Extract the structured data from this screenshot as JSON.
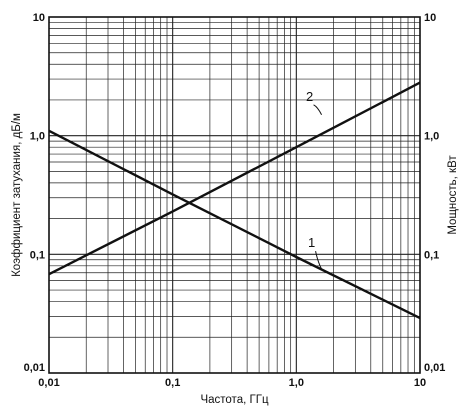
{
  "chart_data": {
    "type": "line",
    "xscale": "log",
    "yscale": "log",
    "xlim": [
      0.01,
      10
    ],
    "ylim": [
      0.01,
      10
    ],
    "y2lim": [
      0.01,
      10
    ],
    "grid": true,
    "xlabel": "Частота, ГГц",
    "ylabel": "Коэффициент затухания, дБ/м",
    "y2label": "Мощность, кВт",
    "x_ticks": [
      {
        "value": 0.01,
        "label": "0,01"
      },
      {
        "value": 0.1,
        "label": "0,1"
      },
      {
        "value": 1,
        "label": "1,0"
      },
      {
        "value": 10,
        "label": "10"
      }
    ],
    "y_ticks": [
      {
        "value": 0.01,
        "label": "0,01"
      },
      {
        "value": 0.1,
        "label": "0,1"
      },
      {
        "value": 1,
        "label": "1,0"
      },
      {
        "value": 10,
        "label": "10"
      }
    ],
    "y2_ticks": [
      {
        "value": 0.01,
        "label": "0,01"
      },
      {
        "value": 0.1,
        "label": "0,1"
      },
      {
        "value": 1,
        "label": "1,0"
      },
      {
        "value": 10,
        "label": "10"
      }
    ],
    "series": [
      {
        "name": "1",
        "axis": "left",
        "x": [
          0.01,
          0.1,
          1,
          10
        ],
        "y": [
          1.1,
          0.32,
          0.095,
          0.029
        ],
        "label_at": {
          "x": 1.6,
          "y": 0.075
        }
      },
      {
        "name": "2",
        "axis": "right",
        "x": [
          0.01,
          0.1,
          1,
          10
        ],
        "y": [
          0.068,
          0.23,
          0.8,
          2.8
        ],
        "label_at": {
          "x": 1.6,
          "y": 1.5
        }
      }
    ]
  }
}
